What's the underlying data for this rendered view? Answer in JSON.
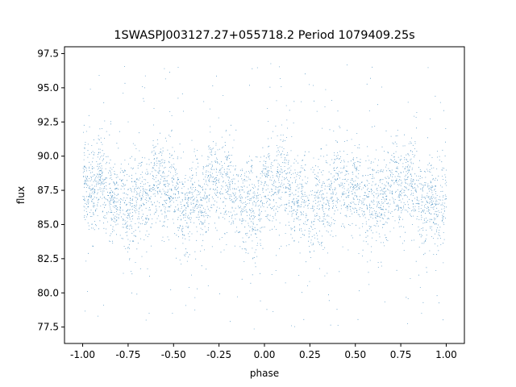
{
  "chart_data": {
    "type": "scatter",
    "title": "1SWASPJ003127.27+055718.2 Period 1079409.25s",
    "xlabel": "phase",
    "ylabel": "flux",
    "xlim": [
      -1.1,
      1.1
    ],
    "ylim": [
      76.3,
      98.0
    ],
    "x_ticks": [
      "-1.00",
      "-0.75",
      "-0.50",
      "-0.25",
      "0.00",
      "0.25",
      "0.50",
      "0.75",
      "1.00"
    ],
    "y_ticks": [
      "77.5",
      "80.0",
      "82.5",
      "85.0",
      "87.5",
      "90.0",
      "92.5",
      "95.0",
      "97.5"
    ],
    "x_tick_values": [
      -1.0,
      -0.75,
      -0.5,
      -0.25,
      0.0,
      0.25,
      0.5,
      0.75,
      1.0
    ],
    "y_tick_values": [
      77.5,
      80.0,
      82.5,
      85.0,
      87.5,
      90.0,
      92.5,
      95.0,
      97.5
    ],
    "grid": false,
    "series": [
      {
        "color": "#1f77b4",
        "phase_range": [
          -1.0,
          1.0
        ],
        "mean_flux": 87.2,
        "flux_spread": 1.6,
        "flux_min": 77.3,
        "flux_max": 97.0,
        "point_count": 9000
      }
    ]
  }
}
